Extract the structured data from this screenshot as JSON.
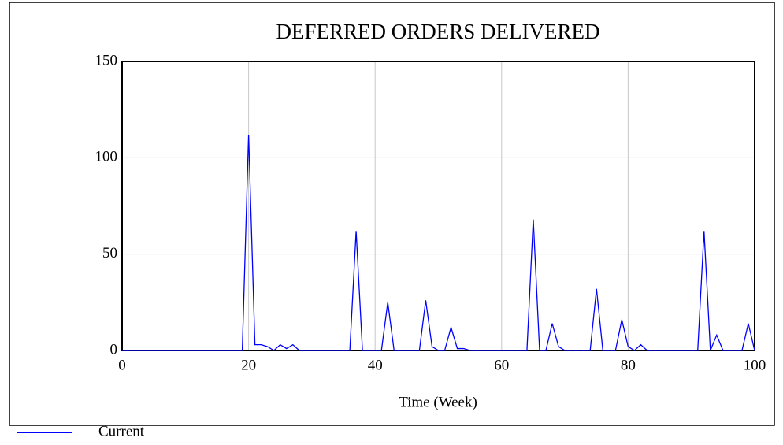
{
  "chart_data": {
    "type": "line",
    "title": "DEFERRED ORDERS DELIVERED",
    "x_label": "Time (Week)",
    "x": [
      0,
      1,
      2,
      3,
      4,
      5,
      6,
      7,
      8,
      9,
      10,
      11,
      12,
      13,
      14,
      15,
      16,
      17,
      18,
      19,
      20,
      21,
      22,
      23,
      24,
      25,
      26,
      27,
      28,
      29,
      30,
      31,
      32,
      33,
      34,
      35,
      36,
      37,
      38,
      39,
      40,
      41,
      42,
      43,
      44,
      45,
      46,
      47,
      48,
      49,
      50,
      51,
      52,
      53,
      54,
      55,
      56,
      57,
      58,
      59,
      60,
      61,
      62,
      63,
      64,
      65,
      66,
      67,
      68,
      69,
      70,
      71,
      72,
      73,
      74,
      75,
      76,
      77,
      78,
      79,
      80,
      81,
      82,
      83,
      84,
      85,
      86,
      87,
      88,
      89,
      90,
      91,
      92,
      93,
      94,
      95,
      96,
      97,
      98,
      99,
      100
    ],
    "series": [
      {
        "name": "Current",
        "color": "#0000ff",
        "values": [
          0,
          0,
          0,
          0,
          0,
          0,
          0,
          0,
          0,
          0,
          0,
          0,
          0,
          0,
          0,
          0,
          0,
          0,
          0,
          0,
          112,
          3,
          3,
          2,
          0,
          3,
          1,
          3,
          0,
          0,
          0,
          0,
          0,
          0,
          0,
          0,
          0,
          62,
          0,
          0,
          0,
          0,
          25,
          0,
          0,
          0,
          0,
          0,
          26,
          2,
          0,
          0,
          12,
          1,
          1,
          0,
          0,
          0,
          0,
          0,
          0,
          0,
          0,
          0,
          0,
          68,
          0,
          0,
          14,
          2,
          0,
          0,
          0,
          0,
          0,
          32,
          0,
          0,
          0,
          16,
          2,
          0,
          3,
          0,
          0,
          0,
          0,
          0,
          0,
          0,
          0,
          0,
          62,
          0,
          8,
          0,
          0,
          0,
          0,
          14,
          0
        ]
      }
    ],
    "xlim": [
      0,
      100
    ],
    "xticks": [
      0,
      20,
      40,
      60,
      80,
      100
    ],
    "ylim": [
      0,
      150
    ],
    "yticks": [
      0,
      50,
      100,
      150
    ],
    "grid": true,
    "legend": "bottom-left"
  }
}
